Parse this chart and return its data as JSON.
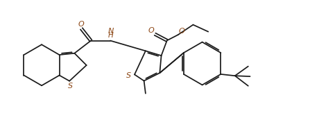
{
  "background_color": "#ffffff",
  "line_color": "#1a1a1a",
  "heteroatom_color": "#8B4513",
  "figsize": [
    4.47,
    1.83
  ],
  "dpi": 100,
  "xlim": [
    0,
    9.5
  ],
  "ylim": [
    0,
    4.0
  ]
}
